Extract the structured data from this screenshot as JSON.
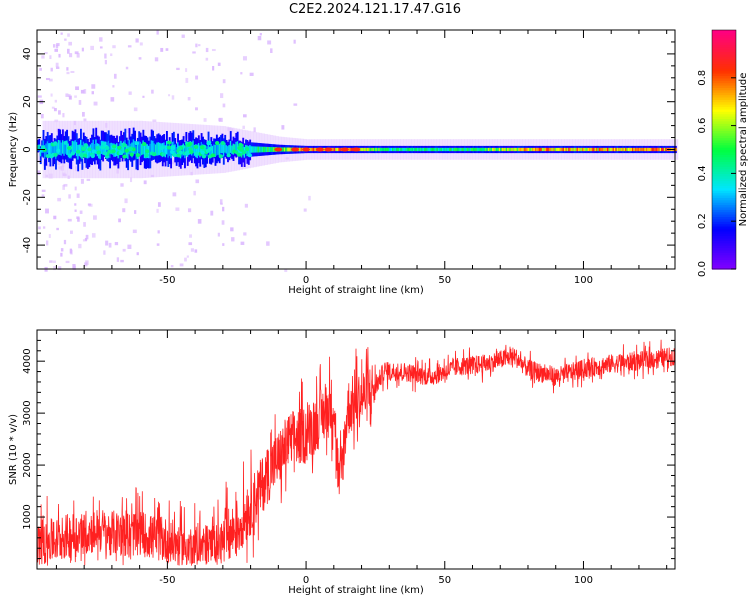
{
  "figure_title": "C2E2.2024.121.17.47.G16",
  "chart_data": [
    {
      "type": "heatmap",
      "xlabel": "Height of straight line (km)",
      "ylabel": "Frequency (Hz)",
      "xlim": [
        -97,
        133
      ],
      "ylim": [
        -50,
        50
      ],
      "xticks": [
        -50,
        0,
        50,
        100
      ],
      "yticks": [
        -40,
        -20,
        0,
        20,
        40
      ],
      "colorbar": {
        "label": "Normalized spectral amplitude",
        "range": [
          0,
          1
        ],
        "ticks": [
          "0.0",
          "0.2",
          "0.4",
          "0.6",
          "0.8"
        ],
        "tick_values": [
          0.0,
          0.2,
          0.4,
          0.6,
          0.8
        ],
        "colormap": [
          "#7f00ff",
          "#0000ff",
          "#00e5ff",
          "#00ff40",
          "#ffff00",
          "#ff3000",
          "#ff0080"
        ]
      },
      "ridge": {
        "description_frequency_hz": 0,
        "points": [
          {
            "x": -95,
            "spread_hz": 5,
            "amp": 0.35
          },
          {
            "x": -60,
            "spread_hz": 5,
            "amp": 0.35
          },
          {
            "x": -30,
            "spread_hz": 4,
            "amp": 0.35
          },
          {
            "x": -10,
            "spread_hz": 2,
            "amp": 0.55
          },
          {
            "x": 0,
            "spread_hz": 1.5,
            "amp": 0.8
          },
          {
            "x": 15,
            "spread_hz": 1.5,
            "amp": 0.85
          },
          {
            "x": 30,
            "spread_hz": 1.5,
            "amp": 0.45
          },
          {
            "x": 60,
            "spread_hz": 1.5,
            "amp": 0.5
          },
          {
            "x": 80,
            "spread_hz": 1.5,
            "amp": 0.75
          },
          {
            "x": 133,
            "spread_hz": 1.5,
            "amp": 0.8
          }
        ]
      }
    },
    {
      "type": "line",
      "xlabel": "Height of straight line (km)",
      "ylabel": "SNR (10 * v/v)",
      "xlim": [
        -97,
        133
      ],
      "ylim": [
        0,
        4600
      ],
      "xticks": [
        -50,
        0,
        50,
        100
      ],
      "yticks": [
        1000,
        2000,
        3000,
        4000
      ],
      "series": [
        {
          "color": "#ff2020",
          "x": [
            -97,
            -90,
            -85,
            -80,
            -75,
            -70,
            -65,
            -60,
            -55,
            -50,
            -45,
            -40,
            -35,
            -30,
            -25,
            -20,
            -15,
            -12,
            -10,
            -7,
            -5,
            0,
            5,
            10,
            12,
            15,
            20,
            25,
            28,
            35,
            45,
            55,
            65,
            75,
            80,
            90,
            100,
            110,
            120,
            133
          ],
          "y": [
            500,
            550,
            650,
            700,
            750,
            700,
            650,
            700,
            600,
            550,
            450,
            400,
            450,
            500,
            800,
            1200,
            1700,
            2000,
            2100,
            2400,
            2500,
            2600,
            2900,
            3200,
            1500,
            3100,
            3300,
            3500,
            3800,
            3800,
            3700,
            3900,
            3950,
            4100,
            3850,
            3700,
            3850,
            3950,
            4000,
            4100
          ]
        }
      ]
    }
  ]
}
